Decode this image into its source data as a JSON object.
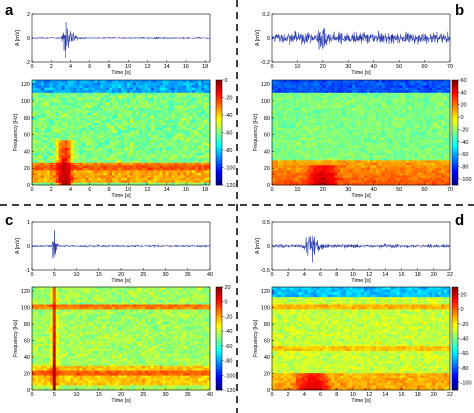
{
  "chart_data": [
    {
      "panel": "a",
      "type": "line",
      "ylabel": "A [mV]",
      "xlabel": "Time [s]",
      "xlim": [
        0,
        18.5
      ],
      "xticks": [
        0,
        2,
        4,
        6,
        8,
        10,
        12,
        14,
        16,
        18
      ],
      "ylim": [
        -2,
        2
      ],
      "yticks": [
        -2,
        0,
        2
      ],
      "color": "#2233aa",
      "burst": {
        "onset": 3.0,
        "peak_time": 3.4,
        "decay_s": 1.3,
        "amplitude": 1.8,
        "noise": 0.05
      },
      "spectrogram": {
        "type": "heatmap",
        "xlabel": "Time [s]",
        "ylabel": "Frequency [Hz]",
        "xlim": [
          0,
          18.5
        ],
        "ylim": [
          0,
          125
        ],
        "yticks": [
          0,
          20,
          40,
          60,
          80,
          100,
          120
        ],
        "colorbar_range": [
          -120,
          0
        ],
        "colorbar_ticks": [
          0,
          -20,
          -40,
          -60,
          -80,
          -100,
          -120
        ],
        "background_level": -60,
        "top_band": {
          "from_hz": 110,
          "to_hz": 125,
          "level": -85
        },
        "low_band": {
          "from_hz": 3,
          "to_hz": 25,
          "level": -35
        },
        "line_levels": [
          {
            "hz": 20,
            "level": -25
          },
          {
            "hz": 25,
            "level": -30
          }
        ],
        "event": {
          "time_s": 3.4,
          "max_hz": 55,
          "level": -5,
          "duration_s": 2.0
        }
      }
    },
    {
      "panel": "b",
      "type": "line",
      "ylabel": "A [mV]",
      "xlabel": "Time [s]",
      "xlim": [
        0,
        70
      ],
      "xticks": [
        0,
        10,
        20,
        30,
        40,
        50,
        60,
        70
      ],
      "ylim": [
        -0.2,
        0.2
      ],
      "yticks": [
        -0.2,
        0,
        0.2
      ],
      "color": "#2233aa",
      "burst": {
        "onset": 16,
        "peak_time": 20,
        "decay_s": 5,
        "amplitude": 0.13,
        "noise": 0.03
      },
      "spectrogram": {
        "type": "heatmap",
        "xlabel": "Time [s]",
        "ylabel": "Frequency [Hz]",
        "xlim": [
          0,
          70
        ],
        "ylim": [
          0,
          125
        ],
        "yticks": [
          0,
          20,
          40,
          60,
          80,
          100,
          120
        ],
        "colorbar_range": [
          -110,
          60
        ],
        "colorbar_ticks": [
          60,
          40,
          20,
          0,
          -20,
          -40,
          -60,
          -80,
          -100
        ],
        "background_level": -25,
        "top_band": {
          "from_hz": 110,
          "to_hz": 125,
          "level": -75
        },
        "low_band": {
          "from_hz": 0,
          "to_hz": 30,
          "level": 25
        },
        "line_levels": [],
        "event": {
          "time_s": 20,
          "max_hz": 25,
          "level": 50,
          "duration_s": 14
        }
      }
    },
    {
      "panel": "c",
      "type": "line",
      "ylabel": "A [mV]",
      "xlabel": "Time [s]",
      "xlim": [
        0,
        40
      ],
      "xticks": [
        0,
        5,
        10,
        15,
        20,
        25,
        30,
        35,
        40
      ],
      "ylim": [
        -1,
        1
      ],
      "yticks": [
        -1,
        0,
        1
      ],
      "color": "#2233aa",
      "burst": {
        "onset": 4.4,
        "peak_time": 5,
        "decay_s": 0.8,
        "amplitude": 0.9,
        "noise": 0.03
      },
      "spectrogram": {
        "type": "heatmap",
        "xlabel": "Time [s]",
        "ylabel": "Frequency [Hz]",
        "xlim": [
          0,
          40
        ],
        "ylim": [
          0,
          125
        ],
        "yticks": [
          0,
          20,
          40,
          60,
          80,
          100,
          120
        ],
        "colorbar_range": [
          -120,
          20
        ],
        "colorbar_ticks": [
          20,
          0,
          -20,
          -40,
          -60,
          -80,
          -100,
          -120
        ],
        "background_level": -45,
        "top_band": {
          "from_hz": 100,
          "to_hz": 105,
          "level": -15
        },
        "low_band": {
          "from_hz": 5,
          "to_hz": 30,
          "level": -25
        },
        "line_levels": [
          {
            "hz": 102,
            "level": -15
          },
          {
            "hz": 20,
            "level": -10
          }
        ],
        "event": {
          "time_s": 5,
          "max_hz": 125,
          "level": 15,
          "duration_s": 1.5
        }
      }
    },
    {
      "panel": "d",
      "type": "line",
      "ylabel": "A [mV]",
      "xlabel": "Time [s]",
      "xlim": [
        0,
        22
      ],
      "xticks": [
        0,
        2,
        4,
        6,
        8,
        10,
        12,
        14,
        16,
        18,
        20,
        22
      ],
      "ylim": [
        -0.5,
        0.5
      ],
      "yticks": [
        -0.5,
        0,
        0.5
      ],
      "color": "#2233aa",
      "burst": {
        "onset": 3.8,
        "peak_time": 5,
        "decay_s": 1.4,
        "amplitude": 0.42,
        "noise": 0.025
      },
      "spectrogram": {
        "type": "heatmap",
        "xlabel": "Time [s]",
        "ylabel": "Frequency [Hz]",
        "xlim": [
          0,
          22
        ],
        "ylim": [
          0,
          125
        ],
        "yticks": [
          0,
          20,
          40,
          60,
          80,
          100,
          120
        ],
        "colorbar_range": [
          -110,
          30
        ],
        "colorbar_ticks": [
          20,
          0,
          -20,
          -40,
          -60,
          -80,
          -100
        ],
        "background_level": -30,
        "top_band": {
          "from_hz": 112,
          "to_hz": 125,
          "level": -65
        },
        "low_band": {
          "from_hz": 0,
          "to_hz": 20,
          "level": -10
        },
        "line_levels": [
          {
            "hz": 50,
            "level": -15
          },
          {
            "hz": 100,
            "level": -12
          }
        ],
        "event": {
          "time_s": 5,
          "max_hz": 20,
          "level": 20,
          "duration_s": 5
        }
      }
    }
  ]
}
